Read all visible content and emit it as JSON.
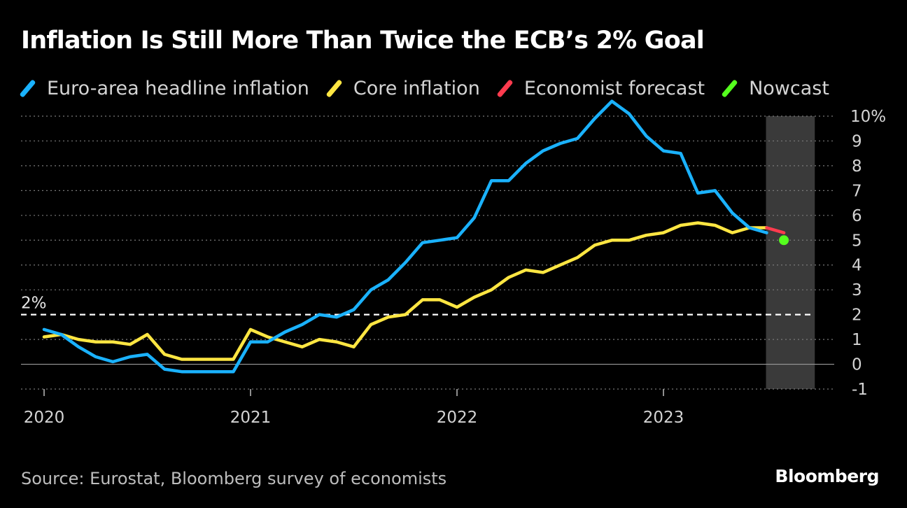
{
  "header": {
    "title": "Inflation Is Still More Than Twice the ECB’s 2% Goal"
  },
  "footer": {
    "source": "Source: Eurostat, Bloomberg survey of economists",
    "brand": "Bloomberg"
  },
  "chart_data": {
    "type": "line",
    "title": "Inflation Is Still More Than Twice the ECB’s 2% Goal",
    "xlabel": "",
    "ylabel": "",
    "x_ticks": [
      "2020",
      "2021",
      "2022",
      "2023"
    ],
    "y_ticks": [
      "10%",
      "9",
      "8",
      "7",
      "6",
      "5",
      "4",
      "3",
      "2",
      "1",
      "0",
      "-1"
    ],
    "ylim": [
      -1,
      10
    ],
    "grid": true,
    "legend_position": "top-left",
    "reference_line": {
      "value": 2,
      "label": "2%"
    },
    "shaded_region": {
      "from": "2023-07",
      "to": "2023-10"
    },
    "colors": {
      "headline": "#1ab2ff",
      "core": "#ffe642",
      "forecast": "#ff3b4e",
      "nowcast": "#55ff1e",
      "grid": "#7a7a7a",
      "shade": "#3a3a3a"
    },
    "series": [
      {
        "name": "Euro-area headline inflation",
        "key": "headline",
        "start": "2020-01",
        "values": [
          1.4,
          1.2,
          0.7,
          0.3,
          0.1,
          0.3,
          0.4,
          -0.2,
          -0.3,
          -0.3,
          -0.3,
          -0.3,
          0.9,
          0.9,
          1.3,
          1.6,
          2.0,
          1.9,
          2.2,
          3.0,
          3.4,
          4.1,
          4.9,
          5.0,
          5.1,
          5.9,
          7.4,
          7.4,
          8.1,
          8.6,
          8.9,
          9.1,
          9.9,
          10.6,
          10.1,
          9.2,
          8.6,
          8.5,
          6.9,
          7.0,
          6.1,
          5.5,
          5.3
        ]
      },
      {
        "name": "Core inflation",
        "key": "core",
        "start": "2020-01",
        "values": [
          1.1,
          1.2,
          1.0,
          0.9,
          0.9,
          0.8,
          1.2,
          0.4,
          0.2,
          0.2,
          0.2,
          0.2,
          1.4,
          1.1,
          0.9,
          0.7,
          1.0,
          0.9,
          0.7,
          1.6,
          1.9,
          2.0,
          2.6,
          2.6,
          2.3,
          2.7,
          3.0,
          3.5,
          3.8,
          3.7,
          4.0,
          4.3,
          4.8,
          5.0,
          5.0,
          5.2,
          5.3,
          5.6,
          5.7,
          5.6,
          5.3,
          5.5,
          5.5
        ]
      },
      {
        "name": "Economist forecast",
        "key": "forecast",
        "x": [
          "2023-07",
          "2023-08"
        ],
        "values": [
          5.5,
          5.3
        ]
      },
      {
        "name": "Nowcast",
        "key": "nowcast",
        "x": [
          "2023-08"
        ],
        "values": [
          5.0
        ]
      }
    ]
  }
}
